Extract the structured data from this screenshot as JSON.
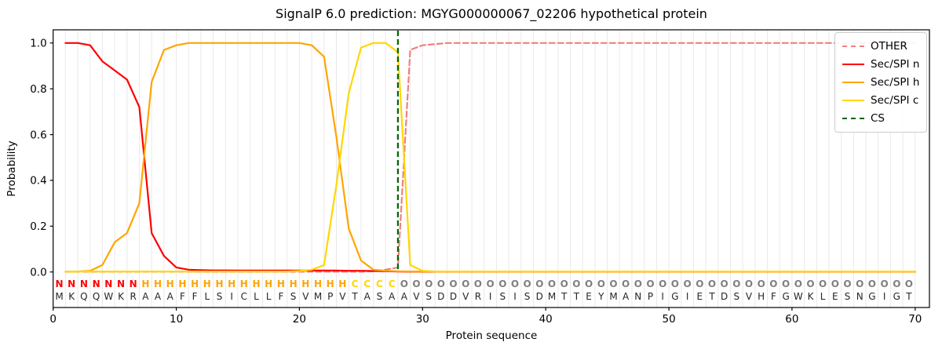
{
  "chart_data": {
    "type": "line",
    "title": "SignalP 6.0 prediction: MGYG000000067_02206 hypothetical protein",
    "xlabel": "Protein sequence",
    "ylabel": "Probability",
    "x_range": [
      1,
      70
    ],
    "xlim": [
      0,
      71.3
    ],
    "ylim": [
      -0.16,
      1.06
    ],
    "xticks": [
      0,
      10,
      20,
      30,
      40,
      50,
      60,
      70
    ],
    "yticks": [
      0.0,
      0.2,
      0.4,
      0.6,
      0.8,
      1.0
    ],
    "grid": "vertical-per-residue",
    "legend_position": "upper-right",
    "colors": {
      "frame": "#000000",
      "grid": "#e9e9e9",
      "background": "#ffffff"
    },
    "series": [
      {
        "id": "other",
        "name": "OTHER",
        "color": "#f08080",
        "dashed": true,
        "values": [
          0.001,
          0.001,
          0.001,
          0.001,
          0.001,
          0.001,
          0.001,
          0.001,
          0.001,
          0.001,
          0.001,
          0.001,
          0.001,
          0.001,
          0.001,
          0.001,
          0.001,
          0.001,
          0.001,
          0.001,
          0.001,
          0.001,
          0.001,
          0.001,
          0.001,
          0.003,
          0.01,
          0.02,
          0.97,
          0.99,
          0.995,
          1.0,
          1.0,
          1.0,
          1.0,
          1.0,
          1.0,
          1.0,
          1.0,
          1.0,
          1.0,
          1.0,
          1.0,
          1.0,
          1.0,
          1.0,
          1.0,
          1.0,
          1.0,
          1.0,
          1.0,
          1.0,
          1.0,
          1.0,
          1.0,
          1.0,
          1.0,
          1.0,
          1.0,
          1.0,
          1.0,
          1.0,
          1.0,
          1.0,
          1.0,
          1.0,
          1.0,
          1.0,
          1.0,
          1.0
        ]
      },
      {
        "id": "sec-spi-n",
        "name": "Sec/SPI n",
        "color": "#ff0000",
        "dashed": false,
        "values": [
          1.0,
          1.0,
          0.99,
          0.92,
          0.88,
          0.84,
          0.72,
          0.17,
          0.07,
          0.02,
          0.01,
          0.008,
          0.007,
          0.007,
          0.006,
          0.006,
          0.006,
          0.006,
          0.006,
          0.006,
          0.006,
          0.006,
          0.006,
          0.005,
          0.005,
          0.004,
          0.003,
          0.002,
          0.001,
          0.001,
          0.001,
          0.001,
          0.001,
          0.001,
          0.001,
          0.001,
          0.001,
          0.001,
          0.001,
          0.001,
          0.001,
          0.001,
          0.001,
          0.001,
          0.001,
          0.001,
          0.001,
          0.001,
          0.001,
          0.001,
          0.001,
          0.001,
          0.001,
          0.001,
          0.001,
          0.001,
          0.001,
          0.001,
          0.001,
          0.001,
          0.001,
          0.001,
          0.001,
          0.001,
          0.001,
          0.001,
          0.001,
          0.001,
          0.001,
          0.001
        ]
      },
      {
        "id": "sec-spi-h",
        "name": "Sec/SPI h",
        "color": "#ffa500",
        "dashed": false,
        "values": [
          0.001,
          0.002,
          0.005,
          0.03,
          0.13,
          0.17,
          0.3,
          0.83,
          0.97,
          0.99,
          1.0,
          1.0,
          1.0,
          1.0,
          1.0,
          1.0,
          1.0,
          1.0,
          1.0,
          1.0,
          0.99,
          0.94,
          0.59,
          0.19,
          0.05,
          0.01,
          0.005,
          0.003,
          0.002,
          0.002,
          0.002,
          0.002,
          0.002,
          0.002,
          0.002,
          0.002,
          0.002,
          0.002,
          0.002,
          0.002,
          0.002,
          0.002,
          0.002,
          0.002,
          0.002,
          0.002,
          0.002,
          0.002,
          0.002,
          0.002,
          0.002,
          0.002,
          0.002,
          0.002,
          0.002,
          0.002,
          0.002,
          0.002,
          0.002,
          0.002,
          0.002,
          0.002,
          0.002,
          0.002,
          0.002,
          0.002,
          0.002,
          0.002,
          0.002,
          0.002
        ]
      },
      {
        "id": "sec-spi-c",
        "name": "Sec/SPI c",
        "color": "#ffd700",
        "dashed": false,
        "values": [
          0.002,
          0.002,
          0.002,
          0.002,
          0.002,
          0.002,
          0.002,
          0.002,
          0.002,
          0.002,
          0.002,
          0.002,
          0.002,
          0.002,
          0.002,
          0.002,
          0.002,
          0.002,
          0.002,
          0.004,
          0.01,
          0.03,
          0.38,
          0.78,
          0.98,
          1.0,
          1.0,
          0.96,
          0.03,
          0.005,
          0.002,
          0.002,
          0.002,
          0.002,
          0.002,
          0.002,
          0.002,
          0.002,
          0.002,
          0.002,
          0.002,
          0.002,
          0.002,
          0.002,
          0.002,
          0.002,
          0.002,
          0.002,
          0.002,
          0.002,
          0.002,
          0.002,
          0.002,
          0.002,
          0.002,
          0.002,
          0.002,
          0.002,
          0.002,
          0.002,
          0.002,
          0.002,
          0.002,
          0.002,
          0.002,
          0.002,
          0.002,
          0.002,
          0.002,
          0.002
        ]
      }
    ],
    "cs": {
      "label": "CS",
      "position": 28,
      "color": "#006400",
      "dashed": true
    },
    "sequence": {
      "residues": "MKQQWKRAAAFFLSICLLFSVMPVTASAAVSDDVRISISDMTTEYMANPIGIETDSVHFGWKLESNGIGT",
      "regions": "NNNNNNNHHHHHHHHHHHHHHHHHCCCCOOOOOOOOOOOOOOOOOOOOOOOOOOOOOOOOOOOOOOOOOO",
      "region_colors": {
        "N": "#ff0000",
        "H": "#ffa500",
        "C": "#ffd700",
        "O": "#7f7f7f"
      },
      "residue_color": "#262626"
    }
  }
}
